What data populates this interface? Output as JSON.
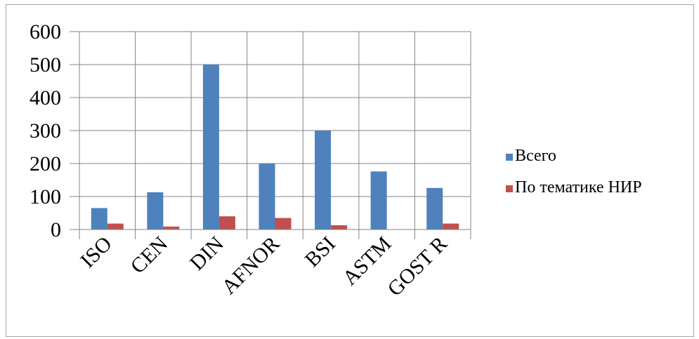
{
  "chart_data": {
    "type": "bar",
    "categories": [
      "ISO",
      "CEN",
      "DIN",
      "AFNOR",
      "BSI",
      "ASTM",
      "GOST R"
    ],
    "series": [
      {
        "name": "Всего",
        "values": [
          65,
          113,
          500,
          200,
          300,
          176,
          126
        ],
        "color": "#4f81bd"
      },
      {
        "name": "По тематике НИР",
        "values": [
          18,
          9,
          40,
          35,
          13,
          0,
          18
        ],
        "color": "#c0504d"
      }
    ],
    "ylim": [
      0,
      600
    ],
    "yticks": [
      "0",
      "100",
      "200",
      "300",
      "400",
      "500",
      "600"
    ],
    "grid": true,
    "legend_position": "right",
    "xlabel_rotation": "-45deg"
  }
}
